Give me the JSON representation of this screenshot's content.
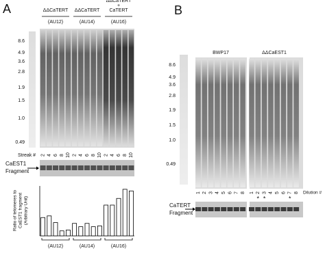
{
  "panel_a": {
    "label": "A",
    "strains": [
      {
        "name": [
          "ΔΔCaTERT"
        ],
        "id": "(AU12)"
      },
      {
        "name": [
          "ΔΔCaTERT"
        ],
        "id": "(AU14)"
      },
      {
        "name": [
          "ΔΔCaTERT",
          "+",
          "CaTERT"
        ],
        "id": "(AU16)"
      }
    ],
    "size_markers": [
      "8.6",
      "4.9",
      "3.6",
      "2.8",
      "1.9",
      "1.5",
      "1.0",
      "0.49"
    ],
    "streak_label": "Streak #",
    "streak_numbers": [
      2,
      4,
      6,
      8,
      10,
      2,
      4,
      6,
      8,
      10,
      2,
      4,
      6,
      8,
      10
    ],
    "fragment_label": [
      "CaEST1",
      "Fragment"
    ]
  },
  "chart_data": {
    "type": "bar",
    "y_label": [
      "Ratio of telomeres to",
      "CaEST1 fragment",
      "(Arbitrary Unit)"
    ],
    "groups": [
      {
        "name": "(AU12)",
        "values": [
          1.1,
          1.2,
          0.8,
          0.3,
          0.35
        ]
      },
      {
        "name": "(AU14)",
        "values": [
          0.75,
          0.55,
          0.75,
          0.55,
          0.6
        ]
      },
      {
        "name": "(AU16)",
        "values": [
          1.85,
          1.85,
          2.25,
          2.8,
          2.7
        ]
      }
    ],
    "ylim": [
      0,
      3
    ],
    "color": "#ffffff"
  },
  "panel_b": {
    "label": "B",
    "strains": [
      "BWP17",
      "ΔΔCaEST1"
    ],
    "size_markers": [
      "8.6",
      "4.9",
      "3.6",
      "2.8",
      "1.9",
      "1.5",
      "1.0",
      "0.49"
    ],
    "dilution_numbers": [
      1,
      2,
      3,
      4,
      5,
      6,
      7,
      8,
      1,
      2,
      3,
      4,
      5,
      6,
      7,
      8
    ],
    "dilution_label": "Dilution #",
    "asterisk": "*",
    "asterisk_lanes": [
      9,
      10,
      14
    ],
    "fragment_label": [
      "CaTERT",
      "Fragment"
    ]
  }
}
